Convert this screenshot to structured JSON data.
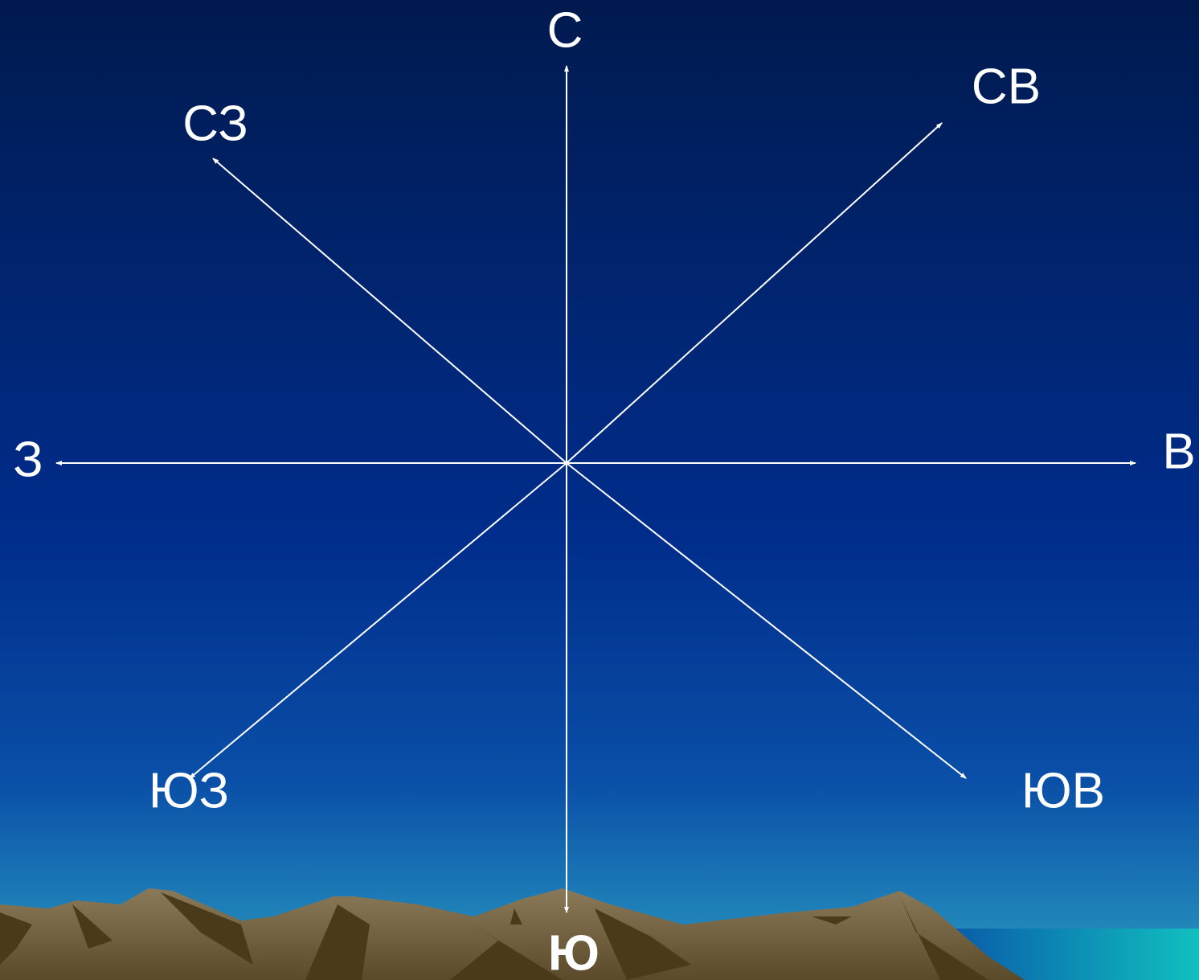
{
  "directions": [
    {
      "label": "С"
    },
    {
      "label": "СВ"
    },
    {
      "label": "В"
    },
    {
      "label": "ЮВ"
    },
    {
      "label": "Ю"
    },
    {
      "label": "ЮЗ"
    },
    {
      "label": "З"
    },
    {
      "label": "СЗ"
    }
  ]
}
